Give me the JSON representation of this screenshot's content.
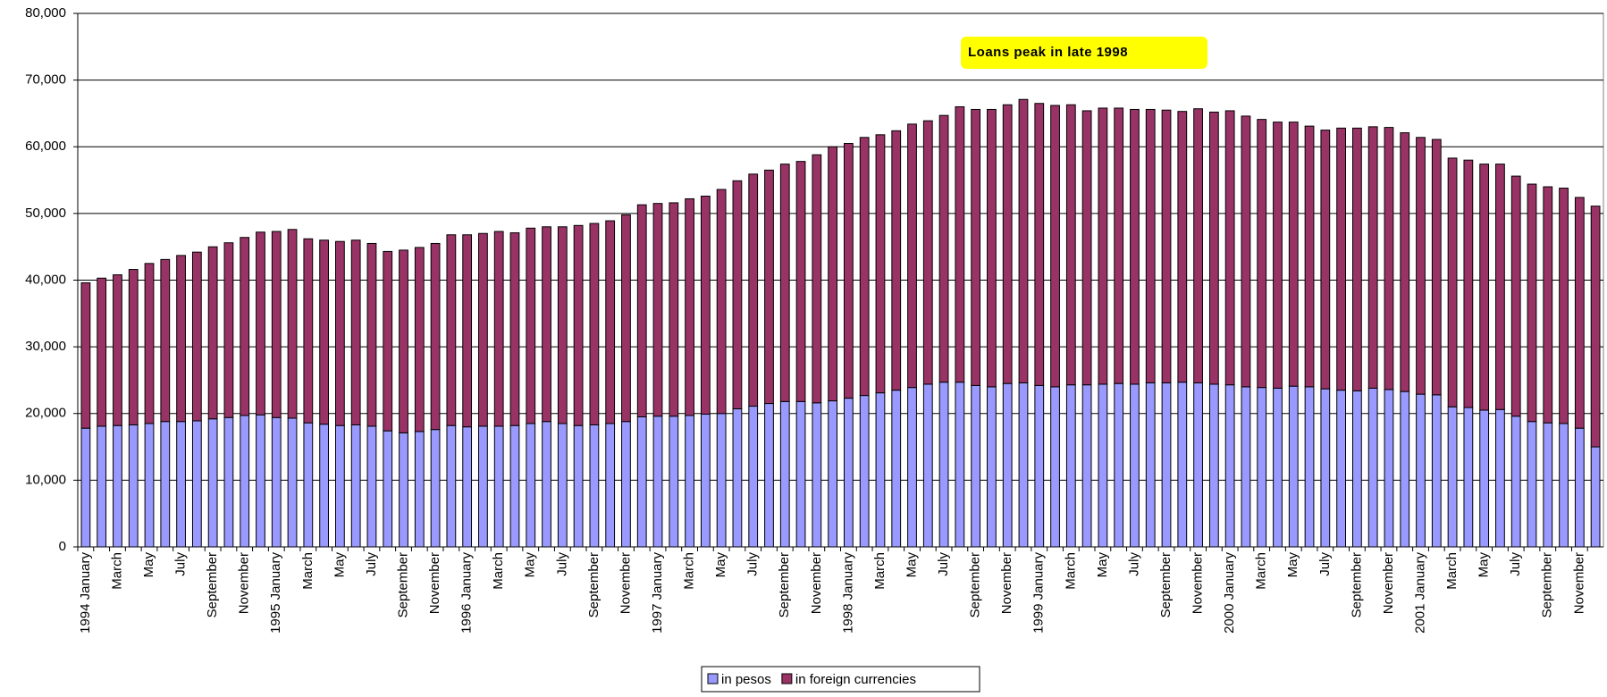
{
  "chart_data": {
    "type": "stacked-bar",
    "annotation": "Loans peak in late 1998",
    "categories": [
      "1994 January",
      null,
      "March",
      null,
      "May",
      null,
      "July",
      null,
      "September",
      null,
      "November",
      null,
      "1995 January",
      null,
      "March",
      null,
      "May",
      null,
      "July",
      null,
      "September",
      null,
      "November",
      null,
      "1996 January",
      null,
      "March",
      null,
      "May",
      null,
      "July",
      null,
      "September",
      null,
      "November",
      null,
      "1997 January",
      null,
      "March",
      null,
      "May",
      null,
      "July",
      null,
      "September",
      null,
      "November",
      null,
      "1998 January",
      null,
      "March",
      null,
      "May",
      null,
      "July",
      null,
      "September",
      null,
      "November",
      null,
      "1999 January",
      null,
      "March",
      null,
      "May",
      null,
      "July",
      null,
      "September",
      null,
      "November",
      null,
      "2000 January",
      null,
      "March",
      null,
      "May",
      null,
      "July",
      null,
      "September",
      null,
      "November",
      null,
      "2001 January",
      null,
      "March",
      null,
      "May",
      null,
      "July",
      null,
      "September",
      null,
      "November",
      null
    ],
    "series": [
      {
        "name": "in pesos",
        "color": "#9999ff",
        "values": [
          17800,
          18100,
          18200,
          18300,
          18500,
          18800,
          18800,
          18900,
          19200,
          19400,
          19700,
          19800,
          19400,
          19300,
          18600,
          18400,
          18200,
          18300,
          18100,
          17400,
          17100,
          17300,
          17600,
          18200,
          18000,
          18100,
          18100,
          18200,
          18500,
          18800,
          18500,
          18200,
          18300,
          18500,
          18800,
          19500,
          19600,
          19600,
          19700,
          19900,
          20000,
          20700,
          21100,
          21500,
          21800,
          21800,
          21600,
          21900,
          22300,
          22700,
          23100,
          23500,
          23900,
          24400,
          24700,
          24700,
          24200,
          24000,
          24500,
          24600,
          24200,
          24000,
          24300,
          24300,
          24400,
          24500,
          24400,
          24600,
          24600,
          24700,
          24600,
          24400,
          24300,
          24000,
          23900,
          23800,
          24100,
          24000,
          23700,
          23500,
          23400,
          23800,
          23600,
          23300,
          22900,
          22800,
          21000,
          20900,
          20500,
          20600,
          19600,
          18800,
          18600,
          18500,
          17800,
          15000
        ]
      },
      {
        "name": "in foreign currencies",
        "color": "#993366",
        "values": [
          21800,
          22200,
          22600,
          23300,
          24000,
          24300,
          24900,
          25300,
          25800,
          26200,
          26700,
          27400,
          27900,
          28300,
          27600,
          27600,
          27600,
          27700,
          27400,
          26900,
          27400,
          27600,
          27900,
          28600,
          28800,
          28900,
          29200,
          28900,
          29300,
          29200,
          29500,
          30000,
          30200,
          30400,
          31000,
          31800,
          31900,
          32000,
          32500,
          32700,
          33600,
          34200,
          34800,
          35000,
          35600,
          36000,
          37200,
          38100,
          38200,
          38700,
          38700,
          38900,
          39500,
          39500,
          40000,
          41300,
          41400,
          41600,
          41800,
          42500,
          42300,
          42200,
          42000,
          41100,
          41400,
          41300,
          41200,
          41000,
          40900,
          40600,
          41100,
          40800,
          41100,
          40600,
          40200,
          39900,
          39600,
          39100,
          38800,
          39300,
          39400,
          39200,
          39300,
          38800,
          38500,
          38300,
          37300,
          37100,
          36900,
          36800,
          36000,
          35600,
          35400,
          35300,
          34600,
          36100
        ]
      }
    ],
    "ylim": [
      0,
      80000
    ],
    "yticks": [
      0,
      {
        "value": 10000,
        "label": "10,000"
      },
      {
        "value": 20000,
        "label": "20,000"
      },
      {
        "value": 30000,
        "label": "30,000"
      },
      {
        "value": 40000,
        "label": "40,000"
      },
      {
        "value": 50000,
        "label": "50,000"
      },
      {
        "value": 60000,
        "label": "60,000"
      },
      {
        "value": 70000,
        "label": "70,000"
      },
      {
        "value": 80000,
        "label": "80,000"
      }
    ],
    "grid": true
  }
}
